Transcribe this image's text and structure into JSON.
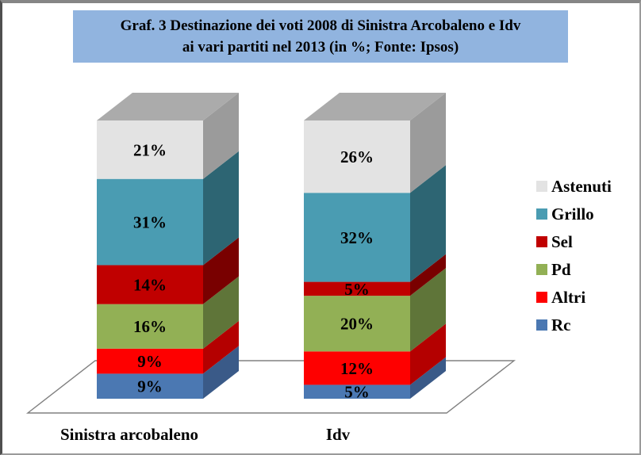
{
  "title": {
    "line1": "Graf. 3 Destinazione dei voti 2008 di Sinistra Arcobaleno e Idv",
    "line2": "ai vari partiti nel 2013 (in %; Fonte: Ipsos)",
    "background_color": "#91b4df"
  },
  "chart_data": {
    "type": "bar",
    "stacked": true,
    "view": "3d",
    "title": "Graf. 3 Destinazione dei voti 2008 di Sinistra Arcobaleno e Idv ai vari partiti nel 2013 (in %; Fonte: Ipsos)",
    "categories": [
      "Sinistra arcobaleno",
      "Idv"
    ],
    "series": [
      {
        "name": "Rc",
        "values": [
          9,
          5
        ],
        "color": "#4b78b2",
        "side_color": "#3a5a88"
      },
      {
        "name": "Altri",
        "values": [
          9,
          12
        ],
        "color": "#fe0000",
        "side_color": "#b40000"
      },
      {
        "name": "Pd",
        "values": [
          16,
          20
        ],
        "color": "#92b055",
        "side_color": "#5f7539"
      },
      {
        "name": "Sel",
        "values": [
          14,
          5
        ],
        "color": "#c00000",
        "side_color": "#790000"
      },
      {
        "name": "Grillo",
        "values": [
          31,
          32
        ],
        "color": "#4a9cb2",
        "side_color": "#2d6573"
      },
      {
        "name": "Astenuti",
        "values": [
          21,
          26
        ],
        "color": "#e3e3e3",
        "side_color": "#9b9b9b"
      }
    ],
    "top_face_color": "#ababab",
    "floor_line_color": "#808080",
    "label_suffix": "%",
    "label_color": "#000000",
    "legend_position": "right",
    "legend_order": [
      "Astenuti",
      "Grillo",
      "Sel",
      "Pd",
      "Altri",
      "Rc"
    ],
    "axes": "none",
    "grid": false
  }
}
